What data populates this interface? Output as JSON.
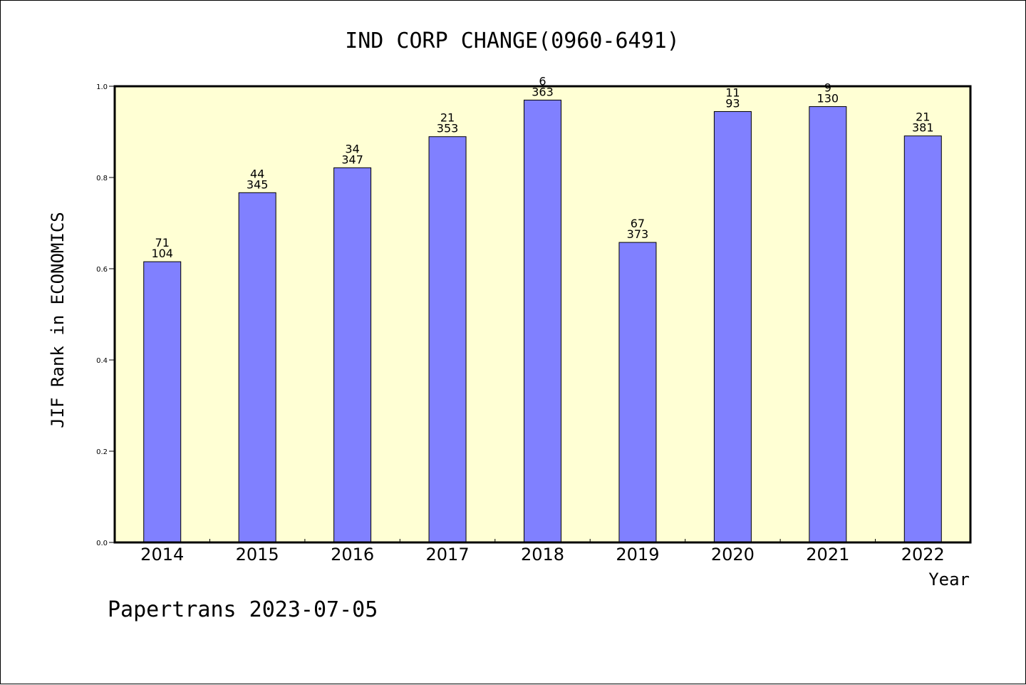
{
  "chart_data": {
    "type": "bar",
    "title": "IND CORP CHANGE(0960-6491)",
    "xlabel": "Year",
    "ylabel": "JIF Rank in ECONOMICS",
    "categories": [
      "2014",
      "2015",
      "2016",
      "2017",
      "2018",
      "2019",
      "2020",
      "2021",
      "2022"
    ],
    "values": [
      0.6154,
      0.7667,
      0.8213,
      0.8895,
      0.9697,
      0.6577,
      0.9446,
      0.9554,
      0.8911
    ],
    "labels_top": [
      "71",
      "44",
      "34",
      "21",
      "6",
      "67",
      "11",
      "9",
      "21"
    ],
    "labels_bottom": [
      "104",
      "345",
      "347",
      "353",
      "363",
      "373",
      "93",
      "130",
      "381"
    ],
    "ylim": [
      0,
      1.0
    ],
    "yticks": [
      "0.0",
      "0.2",
      "0.4",
      "0.6",
      "0.8",
      "1.0"
    ],
    "grid": false,
    "colors": {
      "bar_fill": "#8080ff",
      "plot_background": "#ffffd4",
      "axis": "#000000"
    }
  },
  "footer": "Papertrans 2023-07-05"
}
